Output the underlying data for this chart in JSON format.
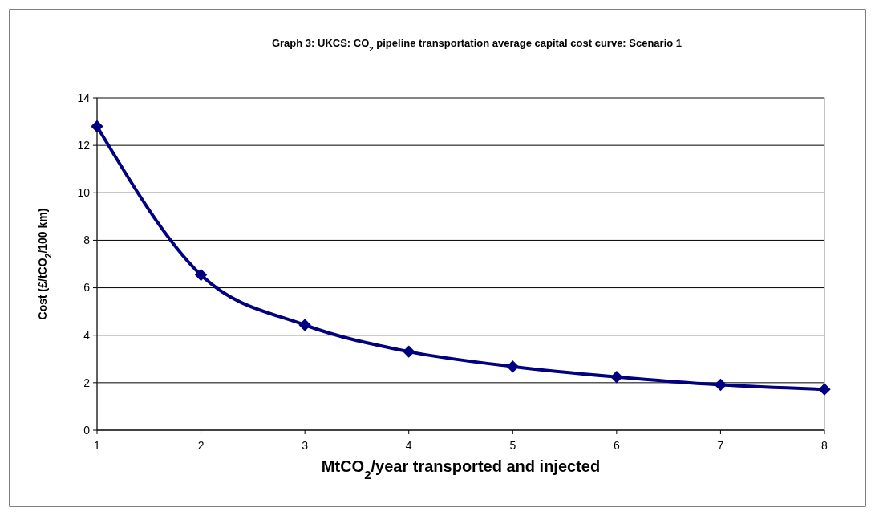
{
  "chart_data": {
    "type": "line",
    "title": "Graph 3: UKCS: CO$_{2}$ pipeline transportation  average capital cost curve: Scenario 1",
    "xlabel": "MtCO$_{2}$/year transported and injected",
    "ylabel": "Cost (£/tCO$_{2}$/100 km)",
    "x": [
      1,
      2,
      3,
      4,
      5,
      6,
      7,
      8
    ],
    "series": [
      {
        "color": "#000080",
        "values": [
          12.8,
          6.54,
          4.43,
          3.31,
          2.68,
          2.24,
          1.91,
          1.72
        ]
      }
    ],
    "xlim": [
      1,
      8
    ],
    "xticks": [
      1,
      2,
      3,
      4,
      5,
      6,
      7,
      8
    ],
    "ylim": [
      0,
      14
    ],
    "yticks": [
      0,
      2,
      4,
      6,
      8,
      10,
      12,
      14
    ],
    "grid": "y",
    "marker": "diamond",
    "line_style": "solid"
  }
}
